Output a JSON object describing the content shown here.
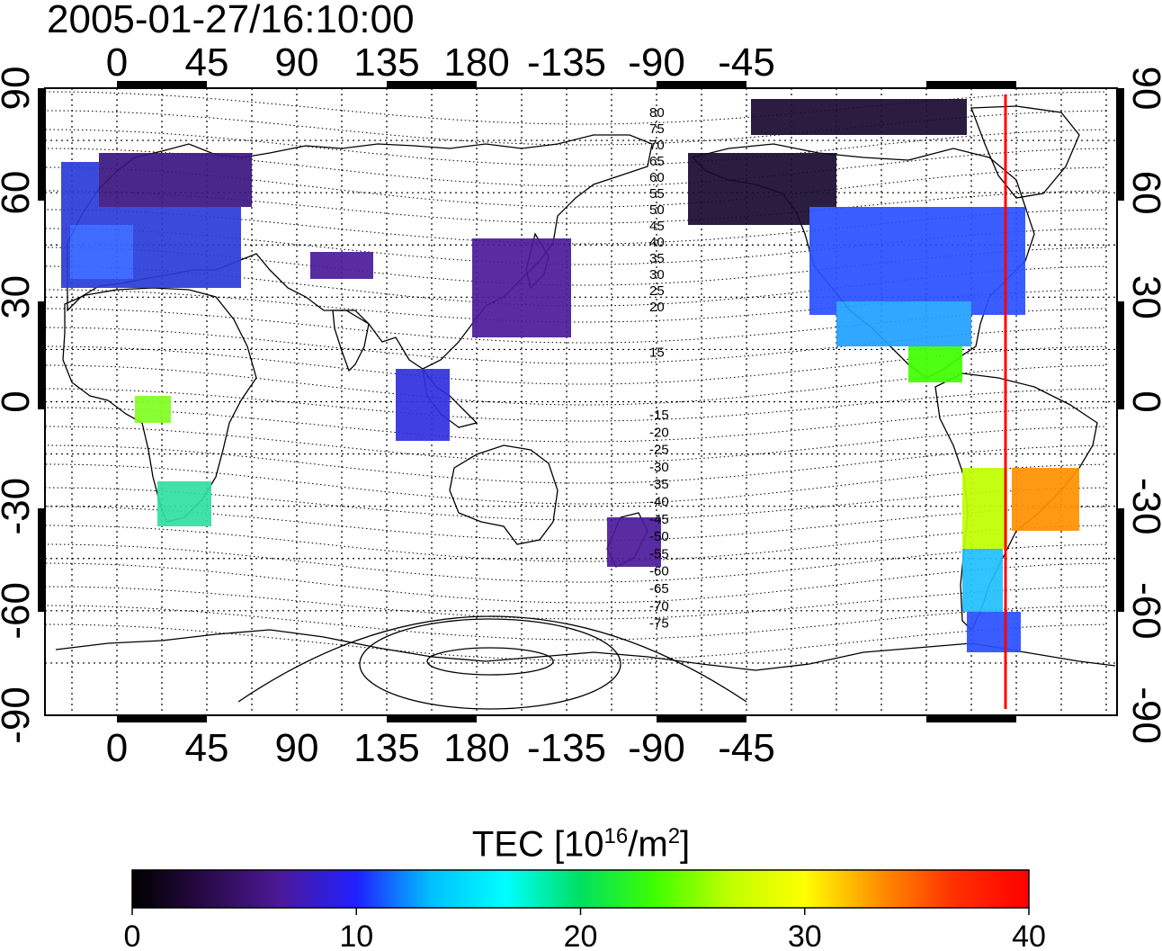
{
  "title": "2005-01-27/16:10:00",
  "map": {
    "lon_ticks": [
      "0",
      "45",
      "90",
      "135",
      "180",
      "-135",
      "-90",
      "-45"
    ],
    "lat_ticks": [
      "90",
      "60",
      "30",
      "0",
      "-30",
      "-60",
      "-90"
    ],
    "contour_labels_north": [
      "80",
      "75",
      "70",
      "65",
      "60",
      "55",
      "50",
      "45",
      "40",
      "35",
      "30",
      "25",
      "20",
      "15"
    ],
    "contour_labels_south": [
      "-15",
      "-20",
      "-25",
      "-30",
      "-35",
      "-40",
      "-45",
      "-50",
      "-55",
      "-60",
      "-65",
      "-70",
      "-75"
    ],
    "terminator_color": "#ff0000"
  },
  "colorbar": {
    "label_prefix": "TEC  [10",
    "label_exp1": "16",
    "label_mid": "/m",
    "label_exp2": "2",
    "label_suffix": "]",
    "ticks": [
      "0",
      "10",
      "20",
      "30",
      "40"
    ],
    "colors": [
      "#000000",
      "#2a0a4a",
      "#4b1a9a",
      "#2020ff",
      "#00c0ff",
      "#00ffff",
      "#00e060",
      "#40ff00",
      "#c0ff00",
      "#ffff00",
      "#ff9000",
      "#ff3000",
      "#ff0000"
    ]
  }
}
